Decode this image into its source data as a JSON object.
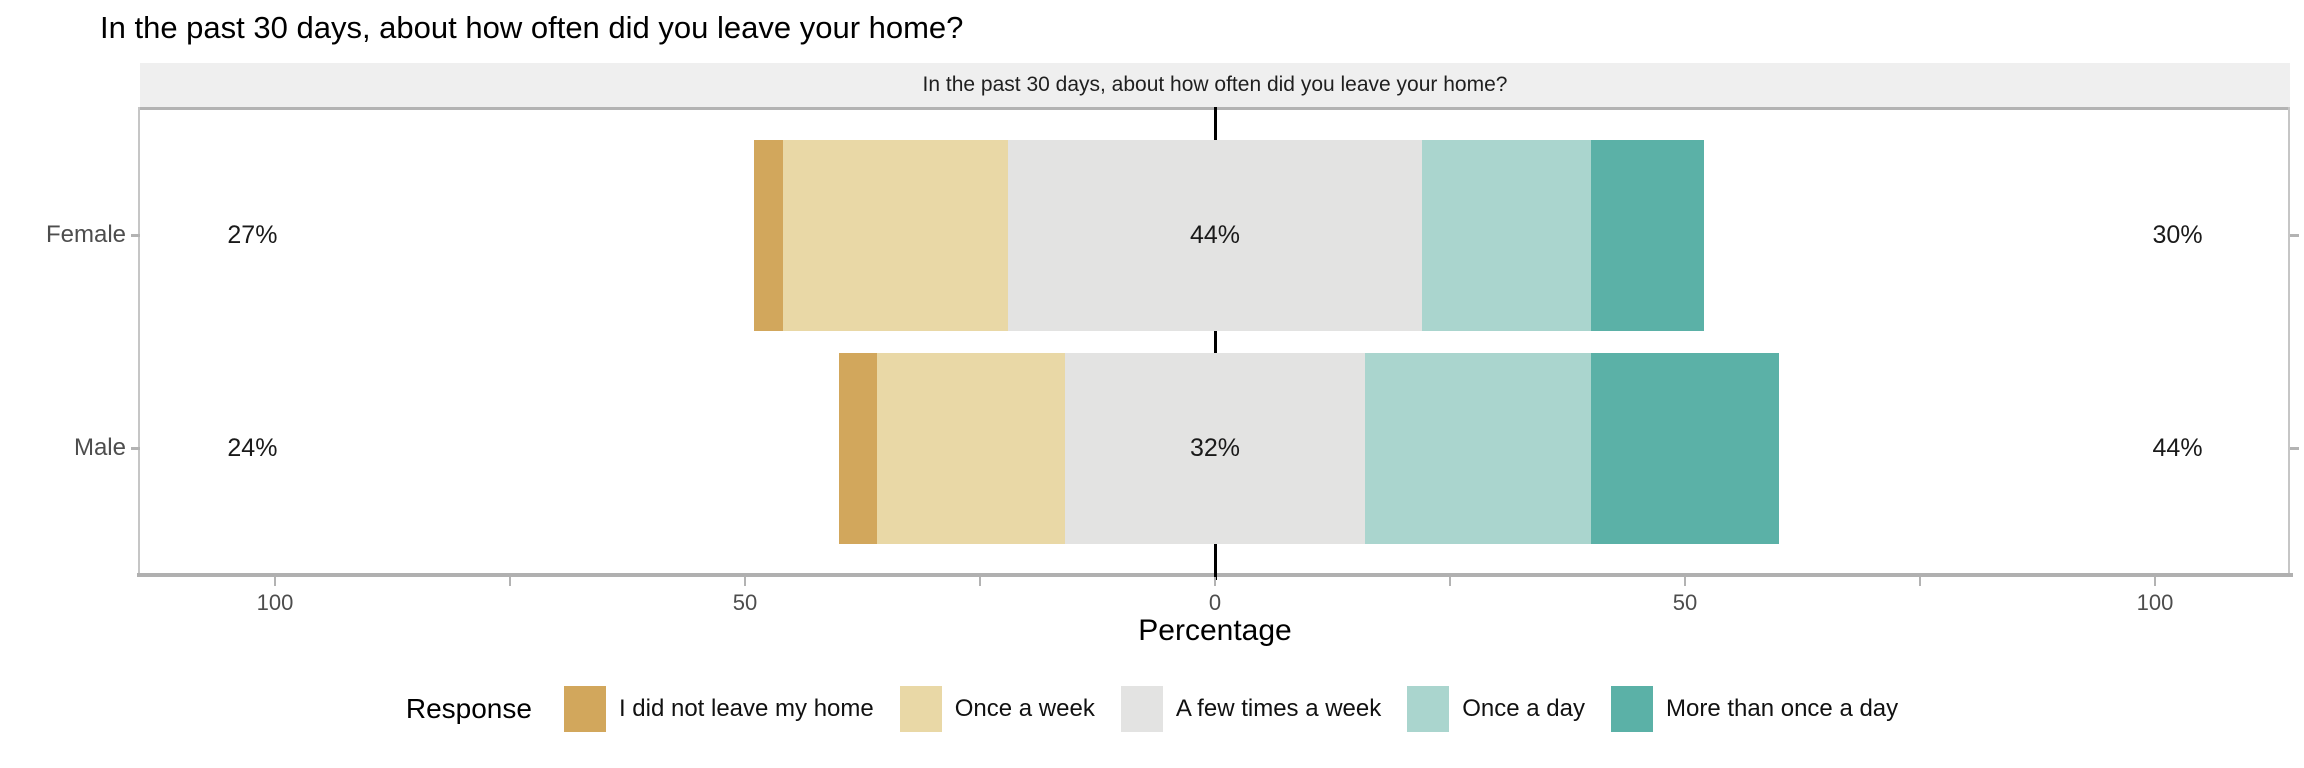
{
  "title": "In the past 30 days, about how often did you leave your home?",
  "facet_label": "In the past 30 days, about how often did you leave your home?",
  "x_axis": {
    "title": "Percentage"
  },
  "y_axis": {
    "categories": [
      "Female",
      "Male"
    ]
  },
  "legend": {
    "title": "Response"
  },
  "colors": {
    "strip_background": "#efefef",
    "panel_border": "#c6c6c6",
    "axis_line": "#b0b0b0",
    "tick": "#b3b3b3",
    "axis_text": "#4d4d4d",
    "zero_reference_line": "#000000"
  },
  "chart_data": {
    "type": "bar",
    "subtype": "diverging-stacked-likert",
    "orientation": "horizontal",
    "title": "In the past 30 days, about how often did you leave your home?",
    "facet_label": "In the past 30 days, about how often did you leave your home?",
    "xlabel": "Percentage",
    "ylabel": "",
    "categories": [
      "Female",
      "Male"
    ],
    "series": [
      {
        "name": "I did not leave my home",
        "color": "#d2a75c",
        "values": [
          3,
          4
        ]
      },
      {
        "name": "Once a week",
        "color": "#e9d8a6",
        "values": [
          24,
          20
        ]
      },
      {
        "name": "A few times a week",
        "color": "#e3e3e2",
        "values": [
          44,
          32
        ]
      },
      {
        "name": "Once a day",
        "color": "#aad5ce",
        "values": [
          18,
          24
        ]
      },
      {
        "name": "More than once a day",
        "color": "#5bb1a7",
        "values": [
          12,
          20
        ]
      }
    ],
    "center_category": "A few times a week",
    "row_labels": [
      {
        "category": "Female",
        "left_total": "27%",
        "center": "44%",
        "right_total": "30%"
      },
      {
        "category": "Male",
        "left_total": "24%",
        "center": "32%",
        "right_total": "44%"
      }
    ],
    "x_tick_values": [
      -100,
      -50,
      0,
      50,
      100
    ],
    "x_tick_labels": [
      "100",
      "50",
      "0",
      "50",
      "100"
    ],
    "x_minor_tick_values": [
      -75,
      -25,
      25,
      75
    ],
    "xlim": [
      -114,
      114
    ],
    "grid": false,
    "legend_title": "Response",
    "legend_position": "bottom"
  }
}
